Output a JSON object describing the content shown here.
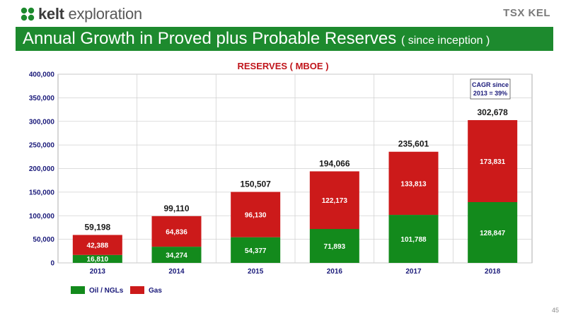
{
  "header": {
    "logo_text_bold": "kelt",
    "logo_text_rest": "exploration",
    "exchange_text": "TSX KEL",
    "title": "Annual Growth in Proved plus Probable Reserves",
    "title_sub": "( since inception )"
  },
  "page_number": "45",
  "colors": {
    "brand_green": "#1d8a2e",
    "oil": "#138a1c",
    "gas": "#cc1a1a",
    "title_red": "#c0151b"
  },
  "chart_data": {
    "type": "bar",
    "stacked": true,
    "title": "RESERVES ( MBOE )",
    "categories": [
      "2013",
      "2014",
      "2015",
      "2016",
      "2017",
      "2018"
    ],
    "series": [
      {
        "name": "Oil / NGLs",
        "values": [
          16810,
          34274,
          54377,
          71893,
          101788,
          128847
        ],
        "labels": [
          "16,810",
          "34,274",
          "54,377",
          "71,893",
          "101,788",
          "128,847"
        ]
      },
      {
        "name": "Gas",
        "values": [
          42388,
          64836,
          96130,
          122173,
          133813,
          173831
        ],
        "labels": [
          "42,388",
          "64,836",
          "96,130",
          "122,173",
          "133,813",
          "173,831"
        ]
      }
    ],
    "totals": [
      "59,198",
      "99,110",
      "150,507",
      "194,066",
      "235,601",
      "302,678"
    ],
    "ylim": [
      0,
      400000
    ],
    "yticks": [
      0,
      50000,
      100000,
      150000,
      200000,
      250000,
      300000,
      350000,
      400000
    ],
    "ytick_labels": [
      "0",
      "50,000",
      "100,000",
      "150,000",
      "200,000",
      "250,000",
      "300,000",
      "350,000",
      "400,000"
    ],
    "grid": true,
    "legend_position": "bottom-left",
    "annotation": [
      "CAGR since",
      "2013 = 39%"
    ]
  }
}
